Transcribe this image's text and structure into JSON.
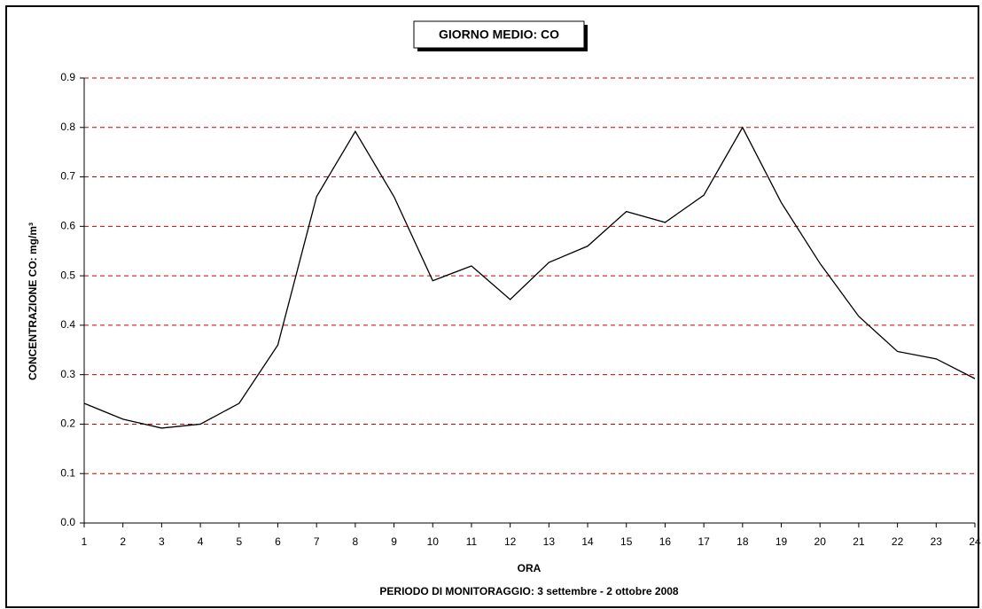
{
  "chart_data": {
    "type": "line",
    "title": "GIORNO MEDIO: CO",
    "x_label": "ORA",
    "y_label": "CONCENTRAZIONE CO: mg/m³",
    "note": "PERIODO DI MONITORAGGIO: 3 settembre - 2 ottobre 2008",
    "x": [
      1,
      2,
      3,
      4,
      5,
      6,
      7,
      8,
      9,
      10,
      11,
      12,
      13,
      14,
      15,
      16,
      17,
      18,
      19,
      20,
      21,
      22,
      23,
      24
    ],
    "series": [
      {
        "color": "#000000",
        "values": [
          0.242,
          0.21,
          0.192,
          0.2,
          0.242,
          0.36,
          0.66,
          0.792,
          0.66,
          0.49,
          0.52,
          0.452,
          0.527,
          0.56,
          0.63,
          0.608,
          0.663,
          0.8,
          0.648,
          0.525,
          0.418,
          0.347,
          0.332,
          0.292
        ]
      }
    ],
    "xlim": [
      1,
      24
    ],
    "xticks": [
      1,
      2,
      3,
      4,
      5,
      6,
      7,
      8,
      9,
      10,
      11,
      12,
      13,
      14,
      15,
      16,
      17,
      18,
      19,
      20,
      21,
      22,
      23,
      24
    ],
    "ylim": [
      0,
      0.9
    ],
    "yticks": [
      {
        "value": 0,
        "label": "0.0"
      },
      0.1,
      0.2,
      0.3,
      0.4,
      0.5,
      0.6,
      0.7,
      0.8,
      0.9
    ],
    "grid": true,
    "grid_color": "#cc0000"
  }
}
